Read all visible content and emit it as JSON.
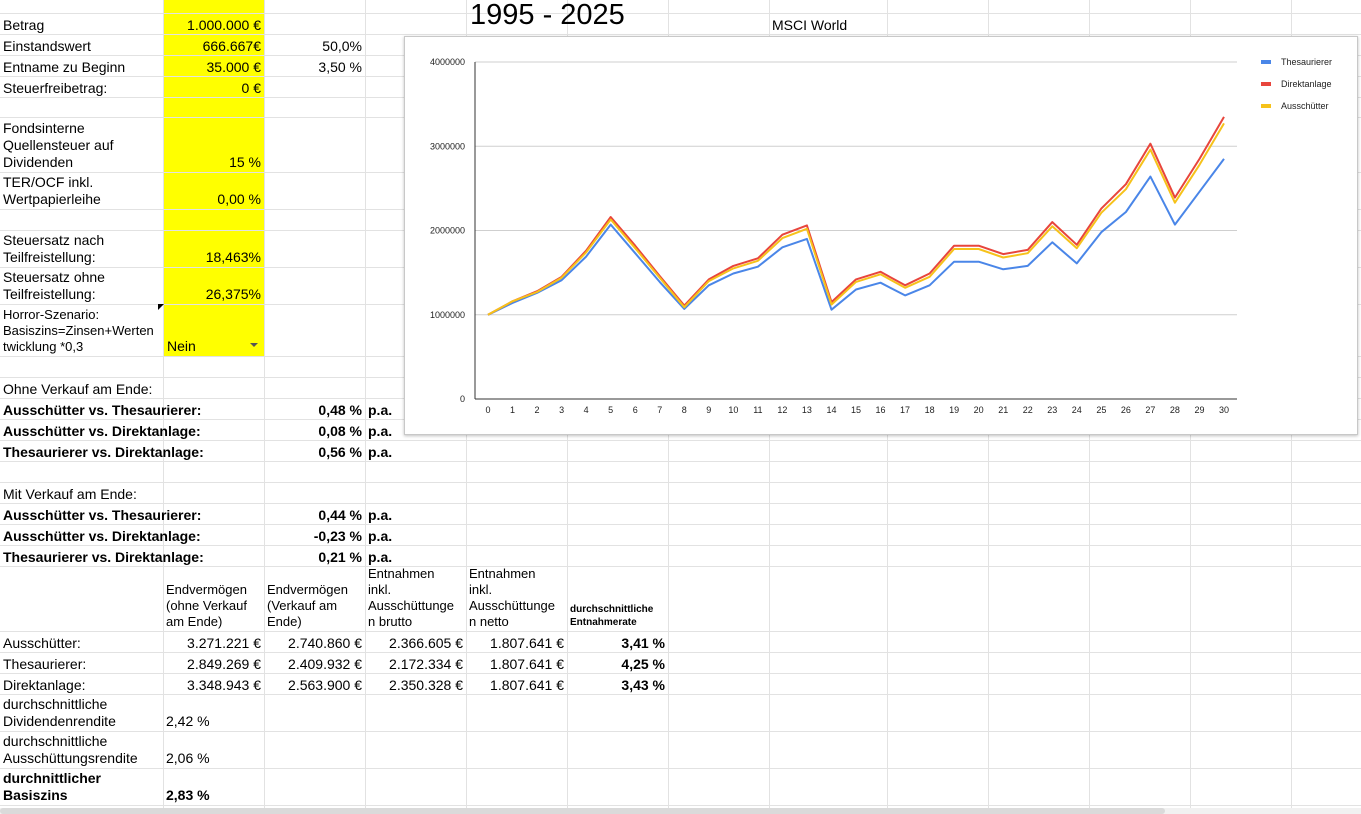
{
  "title": "1995 - 2025",
  "index_label": "MSCI World",
  "inputs": {
    "betrag_label": "Betrag",
    "betrag_value": "1.000.000 €",
    "einstand_label": "Einstandswert",
    "einstand_value": "666.667€",
    "einstand_pct": "50,0%",
    "entnahme_label": "Entname zu Beginn",
    "entnahme_value": "35.000 €",
    "entnahme_pct": "3,50 %",
    "freibetrag_label": "Steuerfreibetrag:",
    "freibetrag_value": "0 €",
    "quellensteuer_label": "Fondsinterne\nQuellensteuer auf\nDividenden",
    "quellensteuer_value": "15 %",
    "ter_label": "TER/OCF inkl.\nWertpapierleihe",
    "ter_value": "0,00 %",
    "steuer_tf_label": "Steuersatz nach\nTeilfreistellung:",
    "steuer_tf_value": "18,463%",
    "steuer_otf_label": "Steuersatz ohne\nTeilfreistellung:",
    "steuer_otf_value": "26,375%",
    "horror_label": "Horror-Szenario:\nBasiszins=Zinsen+Werten\ntwicklung *0,3",
    "horror_value": "Nein"
  },
  "ohne_verkauf": {
    "header": "Ohne Verkauf am Ende:",
    "rows": [
      {
        "label": "Ausschütter vs. Thesaurierer:",
        "value": "0,48 %",
        "unit": "p.a."
      },
      {
        "label": "Ausschütter vs. Direktanlage:",
        "value": "0,08 %",
        "unit": "p.a."
      },
      {
        "label": "Thesaurierer vs. Direktanlage:",
        "value": "0,56 %",
        "unit": "p.a."
      }
    ]
  },
  "mit_verkauf": {
    "header": "Mit Verkauf am Ende:",
    "rows": [
      {
        "label": "Ausschütter vs. Thesaurierer:",
        "value": "0,44 %",
        "unit": "p.a."
      },
      {
        "label": "Ausschütter vs. Direktanlage:",
        "value": "-0,23 %",
        "unit": "p.a."
      },
      {
        "label": "Thesaurierer vs. Direktanlage:",
        "value": "0,21 %",
        "unit": "p.a."
      }
    ]
  },
  "table": {
    "headers": [
      "Endvermögen\n(ohne Verkauf\nam Ende)",
      "Endvermögen\n(Verkauf am\nEnde)",
      "Entnahmen\ninkl.\nAusschüttunge\nn brutto",
      "Entnahmen\ninkl.\nAusschüttunge\nn netto",
      "durchschnittliche\nEntnahmerate"
    ],
    "rows": [
      {
        "label": "Ausschütter:",
        "c1": "3.271.221 €",
        "c2": "2.740.860 €",
        "c3": "2.366.605 €",
        "c4": "1.807.641 €",
        "c5": "3,41 %"
      },
      {
        "label": "Thesaurierer:",
        "c1": "2.849.269 €",
        "c2": "2.409.932 €",
        "c3": "2.172.334 €",
        "c4": "1.807.641 €",
        "c5": "4,25 %"
      },
      {
        "label": "Direktanlage:",
        "c1": "3.348.943 €",
        "c2": "2.563.900 €",
        "c3": "2.350.328 €",
        "c4": "1.807.641 €",
        "c5": "3,43 %"
      }
    ]
  },
  "stats": {
    "div_label": "durchschnittliche\nDividendenrendite",
    "div_value": "2,42 %",
    "aus_label": "durchschnittliche\nAusschüttungsrendite",
    "aus_value": "2,06 %",
    "basis_label": "durchnittlicher\nBasiszins",
    "basis_value": "2,83 %"
  },
  "colors": {
    "thesaurierer": "#4a86e8",
    "direktanlage": "#e8453c",
    "ausschuetter": "#f6c21a",
    "highlight": "#ffff00"
  },
  "chart_data": {
    "type": "line",
    "x": [
      0,
      1,
      2,
      3,
      4,
      5,
      6,
      7,
      8,
      9,
      10,
      11,
      12,
      13,
      14,
      15,
      16,
      17,
      18,
      19,
      20,
      21,
      22,
      23,
      24,
      25,
      26,
      27,
      28,
      29,
      30
    ],
    "y_ticks": [
      "0",
      "1000000",
      "2000000",
      "3000000",
      "4000000"
    ],
    "ylim": [
      0,
      4000000
    ],
    "legend_position": "top-right",
    "series": [
      {
        "name": "Thesaurierer",
        "values": [
          1000000,
          1140000,
          1260000,
          1410000,
          1690000,
          2070000,
          1730000,
          1390000,
          1070000,
          1350000,
          1490000,
          1570000,
          1800000,
          1900000,
          1060000,
          1300000,
          1380000,
          1230000,
          1350000,
          1630000,
          1630000,
          1540000,
          1580000,
          1860000,
          1610000,
          1980000,
          2220000,
          2640000,
          2070000,
          2460000,
          2849269
        ]
      },
      {
        "name": "Direktanlage",
        "values": [
          1000000,
          1160000,
          1280000,
          1450000,
          1760000,
          2160000,
          1820000,
          1460000,
          1110000,
          1420000,
          1580000,
          1670000,
          1950000,
          2060000,
          1150000,
          1420000,
          1510000,
          1350000,
          1490000,
          1820000,
          1820000,
          1720000,
          1770000,
          2100000,
          1830000,
          2260000,
          2550000,
          3030000,
          2390000,
          2850000,
          3348943
        ]
      },
      {
        "name": "Ausschütter",
        "values": [
          1000000,
          1160000,
          1270000,
          1440000,
          1740000,
          2130000,
          1790000,
          1440000,
          1090000,
          1400000,
          1550000,
          1640000,
          1910000,
          2020000,
          1120000,
          1390000,
          1480000,
          1320000,
          1450000,
          1780000,
          1780000,
          1680000,
          1730000,
          2050000,
          1790000,
          2210000,
          2490000,
          2960000,
          2330000,
          2780000,
          3271221
        ]
      }
    ]
  }
}
